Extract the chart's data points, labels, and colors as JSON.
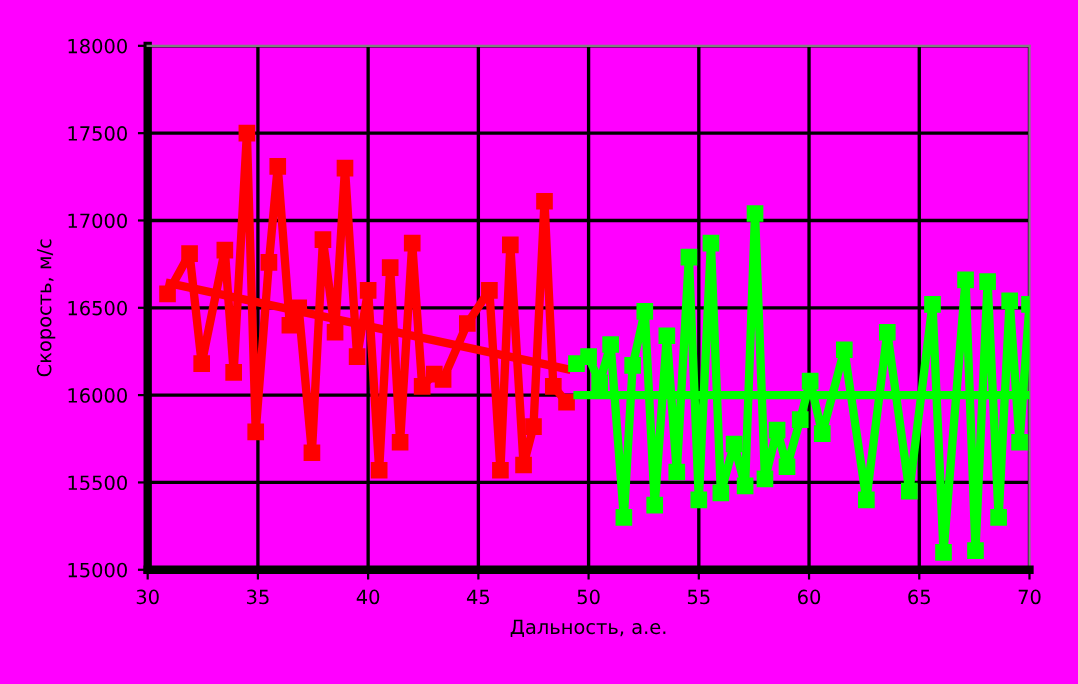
{
  "chart_data": {
    "type": "line",
    "xlabel": "Дальность, а.е.",
    "ylabel": "Скорость, м/с",
    "xlim": [
      30,
      70
    ],
    "xticks": [
      30,
      35,
      40,
      45,
      50,
      55,
      60,
      65,
      70
    ],
    "ylim": [
      15000,
      18000
    ],
    "yticks": [
      15000,
      15500,
      16000,
      16500,
      17000,
      17500,
      18000
    ],
    "grid": true,
    "legend": false,
    "marker": "square",
    "line_style": "solid",
    "series": [
      {
        "color": "#ff0000",
        "x": [
          30.9,
          31.9,
          32.45,
          33.5,
          33.9,
          34.5,
          34.9,
          35.5,
          35.9,
          36.45,
          36.85,
          37.45,
          37.95,
          38.5,
          38.95,
          39.5,
          40.0,
          40.5,
          41.0,
          41.45,
          42.0,
          42.45,
          43.0,
          43.4,
          44.5,
          45.5,
          46.0,
          46.45,
          47.05,
          47.5,
          48.0,
          48.4,
          49.0
        ],
        "values": [
          16580,
          16810,
          16180,
          16830,
          16130,
          17500,
          15790,
          16760,
          17310,
          16400,
          16500,
          15670,
          16890,
          16360,
          17300,
          16220,
          16600,
          15570,
          16730,
          15730,
          16870,
          16050,
          16120,
          16090,
          16410,
          16600,
          15570,
          16860,
          15600,
          15820,
          17110,
          16050,
          15960
        ]
      },
      {
        "color": "#ff0000",
        "type": "line",
        "marker": "none",
        "x": [
          31,
          49
        ],
        "values": [
          16640,
          16150
        ]
      },
      {
        "color": "#00ff00",
        "x": [
          49.45,
          50.0,
          50.5,
          51.0,
          51.6,
          52.0,
          52.55,
          53.0,
          53.55,
          54.0,
          54.55,
          55.0,
          55.55,
          56.0,
          56.6,
          57.1,
          57.55,
          58.0,
          58.55,
          59.0,
          59.6,
          60.05,
          60.6,
          61.6,
          62.6,
          63.55,
          64.55,
          65.6,
          66.1,
          67.1,
          67.55,
          68.1,
          68.6,
          69.1,
          69.55,
          70.0
        ],
        "values": [
          16180,
          16220,
          16070,
          16290,
          15300,
          16170,
          16480,
          15370,
          16340,
          15560,
          16790,
          15400,
          16870,
          15440,
          15720,
          15480,
          17040,
          15520,
          15800,
          15590,
          15860,
          16080,
          15780,
          16260,
          15400,
          16360,
          15450,
          16520,
          15100,
          16660,
          15110,
          16650,
          15300,
          16540,
          15730,
          16520
        ]
      },
      {
        "color": "#00ff00",
        "type": "line",
        "marker": "none",
        "x": [
          49.5,
          70
        ],
        "values": [
          16000,
          16000
        ]
      }
    ]
  }
}
